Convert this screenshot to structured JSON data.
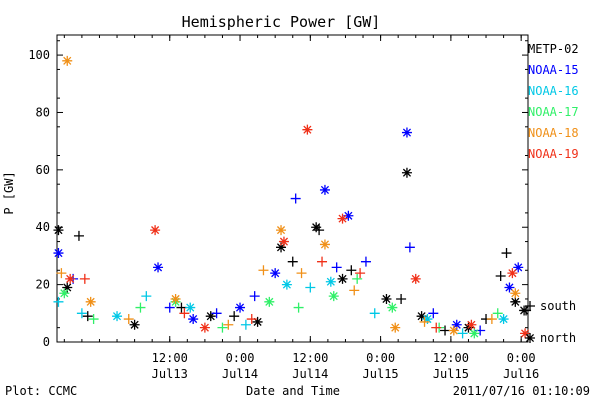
{
  "chart_data": {
    "type": "scatter",
    "title": "Hemispheric Power [GW]",
    "ylabel": "P [GW]",
    "xlabel": "Date and Time",
    "ylim": [
      0,
      107
    ],
    "xlim": [
      "2011-07-12 16:45",
      "2011-07-16 01:10"
    ],
    "yticks": [
      0,
      20,
      40,
      60,
      80,
      100
    ],
    "xticks": [
      {
        "at": "2011-07-13 12:00",
        "time": "12:00",
        "date": "Jul13"
      },
      {
        "at": "2011-07-14 00:00",
        "time": "0:00",
        "date": "Jul14"
      },
      {
        "at": "2011-07-14 12:00",
        "time": "12:00",
        "date": "Jul14"
      },
      {
        "at": "2011-07-15 00:00",
        "time": "0:00",
        "date": "Jul15"
      },
      {
        "at": "2011-07-15 12:00",
        "time": "12:00",
        "date": "Jul15"
      },
      {
        "at": "2011-07-16 00:00",
        "time": "0:00",
        "date": "Jul16"
      }
    ],
    "markers": {
      "south": "+",
      "north": "*"
    },
    "marker_legend": [
      {
        "symbol": "+",
        "label": "south"
      },
      {
        "symbol": "*",
        "label": "north"
      }
    ],
    "footer_left": "Plot: CCMC",
    "footer_right": "2011/07/16 01:10:09",
    "grid": false,
    "legend_position": "right",
    "series": [
      {
        "name": "METP-02",
        "color": "#000000",
        "points": [
          {
            "x": "2011-07-12 17:00",
            "y": 39,
            "h": "north"
          },
          {
            "x": "2011-07-12 20:30",
            "y": 37,
            "h": "south"
          },
          {
            "x": "2011-07-12 18:30",
            "y": 19,
            "h": "north"
          },
          {
            "x": "2011-07-12 22:00",
            "y": 9,
            "h": "south"
          },
          {
            "x": "2011-07-13 06:00",
            "y": 6,
            "h": "north"
          },
          {
            "x": "2011-07-13 14:00",
            "y": 12,
            "h": "south"
          },
          {
            "x": "2011-07-13 19:00",
            "y": 9,
            "h": "north"
          },
          {
            "x": "2011-07-13 23:00",
            "y": 9,
            "h": "south"
          },
          {
            "x": "2011-07-14 03:00",
            "y": 7,
            "h": "north"
          },
          {
            "x": "2011-07-14 07:00",
            "y": 33,
            "h": "north"
          },
          {
            "x": "2011-07-14 09:00",
            "y": 28,
            "h": "south"
          },
          {
            "x": "2011-07-14 13:00",
            "y": 40,
            "h": "north"
          },
          {
            "x": "2011-07-14 13:30",
            "y": 39,
            "h": "south"
          },
          {
            "x": "2011-07-14 17:30",
            "y": 22,
            "h": "north"
          },
          {
            "x": "2011-07-14 19:00",
            "y": 25,
            "h": "south"
          },
          {
            "x": "2011-07-15 01:00",
            "y": 15,
            "h": "north"
          },
          {
            "x": "2011-07-15 03:30",
            "y": 15,
            "h": "south"
          },
          {
            "x": "2011-07-15 04:30",
            "y": 59,
            "h": "north"
          },
          {
            "x": "2011-07-15 07:00",
            "y": 9,
            "h": "north"
          },
          {
            "x": "2011-07-15 11:00",
            "y": 4,
            "h": "south"
          },
          {
            "x": "2011-07-15 15:00",
            "y": 5,
            "h": "north"
          },
          {
            "x": "2011-07-15 18:00",
            "y": 8,
            "h": "south"
          },
          {
            "x": "2011-07-15 20:30",
            "y": 23,
            "h": "south"
          },
          {
            "x": "2011-07-15 21:30",
            "y": 31,
            "h": "south"
          },
          {
            "x": "2011-07-15 23:00",
            "y": 14,
            "h": "north"
          },
          {
            "x": "2011-07-16 00:30",
            "y": 11,
            "h": "north"
          },
          {
            "x": "2011-07-16 00:50",
            "y": 11,
            "h": "south"
          }
        ]
      },
      {
        "name": "NOAA-15",
        "color": "#0000ff",
        "points": [
          {
            "x": "2011-07-12 17:00",
            "y": 31,
            "h": "north"
          },
          {
            "x": "2011-07-12 19:30",
            "y": 22,
            "h": "south"
          },
          {
            "x": "2011-07-13 10:00",
            "y": 26,
            "h": "north"
          },
          {
            "x": "2011-07-13 12:00",
            "y": 12,
            "h": "south"
          },
          {
            "x": "2011-07-13 16:00",
            "y": 8,
            "h": "north"
          },
          {
            "x": "2011-07-13 20:00",
            "y": 10,
            "h": "south"
          },
          {
            "x": "2011-07-14 00:00",
            "y": 12,
            "h": "north"
          },
          {
            "x": "2011-07-14 02:30",
            "y": 16,
            "h": "south"
          },
          {
            "x": "2011-07-14 06:00",
            "y": 24,
            "h": "north"
          },
          {
            "x": "2011-07-14 09:30",
            "y": 50,
            "h": "south"
          },
          {
            "x": "2011-07-14 14:30",
            "y": 53,
            "h": "north"
          },
          {
            "x": "2011-07-14 16:30",
            "y": 26,
            "h": "south"
          },
          {
            "x": "2011-07-14 18:30",
            "y": 44,
            "h": "north"
          },
          {
            "x": "2011-07-14 21:30",
            "y": 28,
            "h": "south"
          },
          {
            "x": "2011-07-15 04:30",
            "y": 73,
            "h": "north"
          },
          {
            "x": "2011-07-15 05:00",
            "y": 33,
            "h": "south"
          },
          {
            "x": "2011-07-15 09:00",
            "y": 10,
            "h": "south"
          },
          {
            "x": "2011-07-15 13:00",
            "y": 6,
            "h": "north"
          },
          {
            "x": "2011-07-15 17:00",
            "y": 4,
            "h": "south"
          },
          {
            "x": "2011-07-15 22:00",
            "y": 19,
            "h": "north"
          },
          {
            "x": "2011-07-15 23:30",
            "y": 26,
            "h": "north"
          }
        ]
      },
      {
        "name": "NOAA-16",
        "color": "#00c8e6",
        "points": [
          {
            "x": "2011-07-12 17:00",
            "y": 14,
            "h": "south"
          },
          {
            "x": "2011-07-12 21:00",
            "y": 10,
            "h": "south"
          },
          {
            "x": "2011-07-13 03:00",
            "y": 9,
            "h": "north"
          },
          {
            "x": "2011-07-13 08:00",
            "y": 16,
            "h": "south"
          },
          {
            "x": "2011-07-13 15:30",
            "y": 12,
            "h": "north"
          },
          {
            "x": "2011-07-14 01:00",
            "y": 6,
            "h": "south"
          },
          {
            "x": "2011-07-14 08:00",
            "y": 20,
            "h": "north"
          },
          {
            "x": "2011-07-14 12:00",
            "y": 19,
            "h": "south"
          },
          {
            "x": "2011-07-14 15:30",
            "y": 21,
            "h": "north"
          },
          {
            "x": "2011-07-14 23:00",
            "y": 10,
            "h": "south"
          },
          {
            "x": "2011-07-15 08:00",
            "y": 8,
            "h": "north"
          },
          {
            "x": "2011-07-15 14:00",
            "y": 3,
            "h": "south"
          },
          {
            "x": "2011-07-15 21:00",
            "y": 8,
            "h": "north"
          }
        ]
      },
      {
        "name": "NOAA-17",
        "color": "#30f068",
        "points": [
          {
            "x": "2011-07-12 18:00",
            "y": 17,
            "h": "north"
          },
          {
            "x": "2011-07-12 23:00",
            "y": 8,
            "h": "south"
          },
          {
            "x": "2011-07-13 07:00",
            "y": 12,
            "h": "south"
          },
          {
            "x": "2011-07-13 13:00",
            "y": 14,
            "h": "north"
          },
          {
            "x": "2011-07-13 21:00",
            "y": 5,
            "h": "south"
          },
          {
            "x": "2011-07-14 05:00",
            "y": 14,
            "h": "north"
          },
          {
            "x": "2011-07-14 10:00",
            "y": 12,
            "h": "south"
          },
          {
            "x": "2011-07-14 16:00",
            "y": 16,
            "h": "north"
          },
          {
            "x": "2011-07-14 20:00",
            "y": 22,
            "h": "south"
          },
          {
            "x": "2011-07-15 02:00",
            "y": 12,
            "h": "north"
          },
          {
            "x": "2011-07-15 10:00",
            "y": 5,
            "h": "south"
          },
          {
            "x": "2011-07-15 16:00",
            "y": 3,
            "h": "north"
          },
          {
            "x": "2011-07-15 20:00",
            "y": 10,
            "h": "south"
          }
        ]
      },
      {
        "name": "NOAA-18",
        "color": "#f09018",
        "points": [
          {
            "x": "2011-07-12 18:30",
            "y": 98,
            "h": "north"
          },
          {
            "x": "2011-07-12 17:30",
            "y": 24,
            "h": "south"
          },
          {
            "x": "2011-07-12 22:30",
            "y": 14,
            "h": "north"
          },
          {
            "x": "2011-07-13 05:00",
            "y": 8,
            "h": "south"
          },
          {
            "x": "2011-07-13 13:00",
            "y": 15,
            "h": "north"
          },
          {
            "x": "2011-07-13 22:00",
            "y": 6,
            "h": "south"
          },
          {
            "x": "2011-07-14 04:00",
            "y": 25,
            "h": "south"
          },
          {
            "x": "2011-07-14 07:00",
            "y": 39,
            "h": "north"
          },
          {
            "x": "2011-07-14 10:30",
            "y": 24,
            "h": "south"
          },
          {
            "x": "2011-07-14 14:30",
            "y": 34,
            "h": "north"
          },
          {
            "x": "2011-07-14 19:30",
            "y": 18,
            "h": "south"
          },
          {
            "x": "2011-07-15 02:30",
            "y": 5,
            "h": "north"
          },
          {
            "x": "2011-07-15 07:30",
            "y": 7,
            "h": "south"
          },
          {
            "x": "2011-07-15 12:30",
            "y": 4,
            "h": "north"
          },
          {
            "x": "2011-07-15 19:00",
            "y": 8,
            "h": "south"
          },
          {
            "x": "2011-07-15 23:00",
            "y": 17,
            "h": "north"
          }
        ]
      },
      {
        "name": "NOAA-19",
        "color": "#f03018",
        "points": [
          {
            "x": "2011-07-12 19:00",
            "y": 22,
            "h": "north"
          },
          {
            "x": "2011-07-12 21:30",
            "y": 22,
            "h": "south"
          },
          {
            "x": "2011-07-13 09:30",
            "y": 39,
            "h": "north"
          },
          {
            "x": "2011-07-13 14:30",
            "y": 10,
            "h": "south"
          },
          {
            "x": "2011-07-13 18:00",
            "y": 5,
            "h": "north"
          },
          {
            "x": "2011-07-14 02:00",
            "y": 8,
            "h": "south"
          },
          {
            "x": "2011-07-14 07:30",
            "y": 35,
            "h": "north"
          },
          {
            "x": "2011-07-14 11:30",
            "y": 74,
            "h": "north"
          },
          {
            "x": "2011-07-14 14:00",
            "y": 28,
            "h": "south"
          },
          {
            "x": "2011-07-14 17:30",
            "y": 43,
            "h": "north"
          },
          {
            "x": "2011-07-14 20:30",
            "y": 24,
            "h": "south"
          },
          {
            "x": "2011-07-15 06:00",
            "y": 22,
            "h": "north"
          },
          {
            "x": "2011-07-15 09:30",
            "y": 5,
            "h": "south"
          },
          {
            "x": "2011-07-15 15:30",
            "y": 6,
            "h": "north"
          },
          {
            "x": "2011-07-15 22:30",
            "y": 24,
            "h": "north"
          },
          {
            "x": "2011-07-16 00:40",
            "y": 3,
            "h": "north"
          }
        ]
      }
    ]
  }
}
